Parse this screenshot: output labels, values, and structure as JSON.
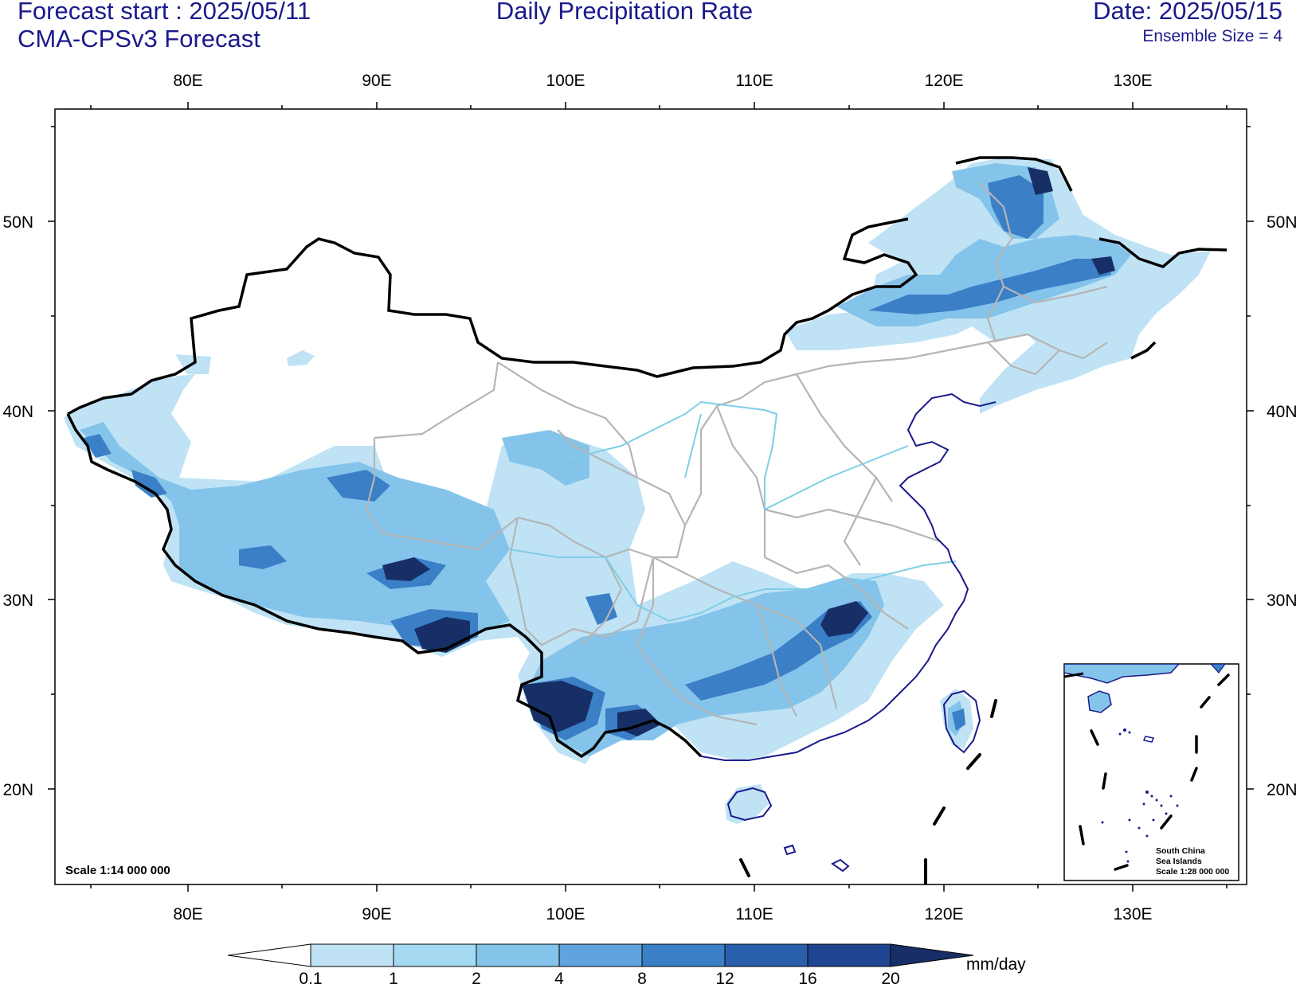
{
  "header": {
    "forecast_start": "Forecast start : 2025/05/11",
    "model": "CMA-CPSv3 Forecast",
    "title": "Daily Precipitation Rate",
    "date": "Date: 2025/05/15",
    "ensemble": "Ensemble Size = 4"
  },
  "map": {
    "lon_labels": [
      "80E",
      "90E",
      "100E",
      "110E",
      "120E",
      "130E"
    ],
    "lat_labels": [
      "50N",
      "40N",
      "30N",
      "20N"
    ],
    "scale_main": "Scale 1:14 000 000",
    "inset": {
      "title_line1": "South China",
      "title_line2": "Sea Islands",
      "scale": "Scale 1:28 000 000"
    }
  },
  "colorbar": {
    "unit": "mm/day",
    "labels": [
      "0.1",
      "1",
      "2",
      "4",
      "8",
      "12",
      "16",
      "20"
    ],
    "colors": [
      "#bfe3f5",
      "#a6d9f2",
      "#85c4ea",
      "#5fa4dc",
      "#3b7fc7",
      "#2a5fab",
      "#1f4590",
      "#172f66"
    ]
  }
}
